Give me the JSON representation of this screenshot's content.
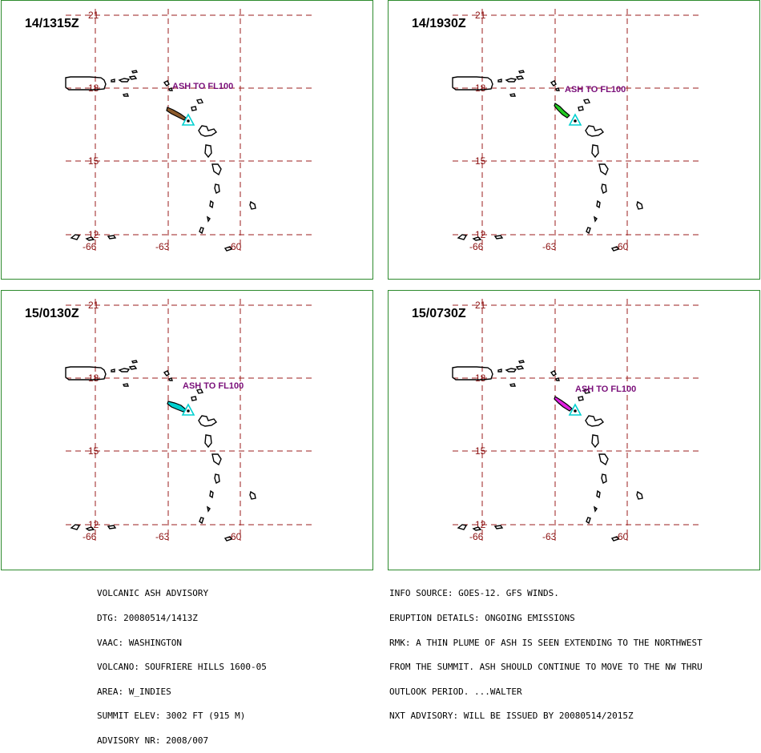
{
  "panels": [
    {
      "title": "14/1315Z",
      "ash_label": "ASH TO FL100",
      "plume_color": "#8b5a2b"
    },
    {
      "title": "14/1930Z",
      "ash_label": "ASH TO FL100",
      "plume_color": "#22cc22"
    },
    {
      "title": "15/0130Z",
      "ash_label": "ASH TO FL100",
      "plume_color": "#00d0d0"
    },
    {
      "title": "15/0730Z",
      "ash_label": "ASH TO FL100",
      "plume_color": "#e020e0"
    }
  ],
  "grid": {
    "lat_labels": [
      "21",
      "18",
      "15",
      "12"
    ],
    "lon_labels": [
      "-66",
      "-63",
      "-60"
    ]
  },
  "advisory_left": [
    "VOLCANIC ASH ADVISORY",
    "DTG: 20080514/1413Z",
    "VAAC: WASHINGTON",
    "VOLCANO: SOUFRIERE HILLS 1600-05",
    "AREA: W_INDIES",
    "SUMMIT ELEV: 3002 FT (915 M)",
    "ADVISORY NR: 2008/007"
  ],
  "advisory_right": [
    "INFO SOURCE: GOES-12. GFS WINDS.",
    "ERUPTION DETAILS: ONGOING EMISSIONS",
    "RMK: A THIN PLUME OF ASH IS SEEN EXTENDING TO THE NORTHWEST",
    "FROM THE SUMMIT. ASH SHOULD CONTINUE TO MOVE TO THE NW THRU",
    "OUTLOOK PERIOD. ...WALTER",
    "NXT ADVISORY: WILL BE ISSUED BY 20080514/2015Z"
  ],
  "colors": {
    "frame": "#2e8b2e",
    "grid": "#9b1c1c",
    "ash_label": "#7a0f7a",
    "volcano_marker": "#00d0d0"
  }
}
